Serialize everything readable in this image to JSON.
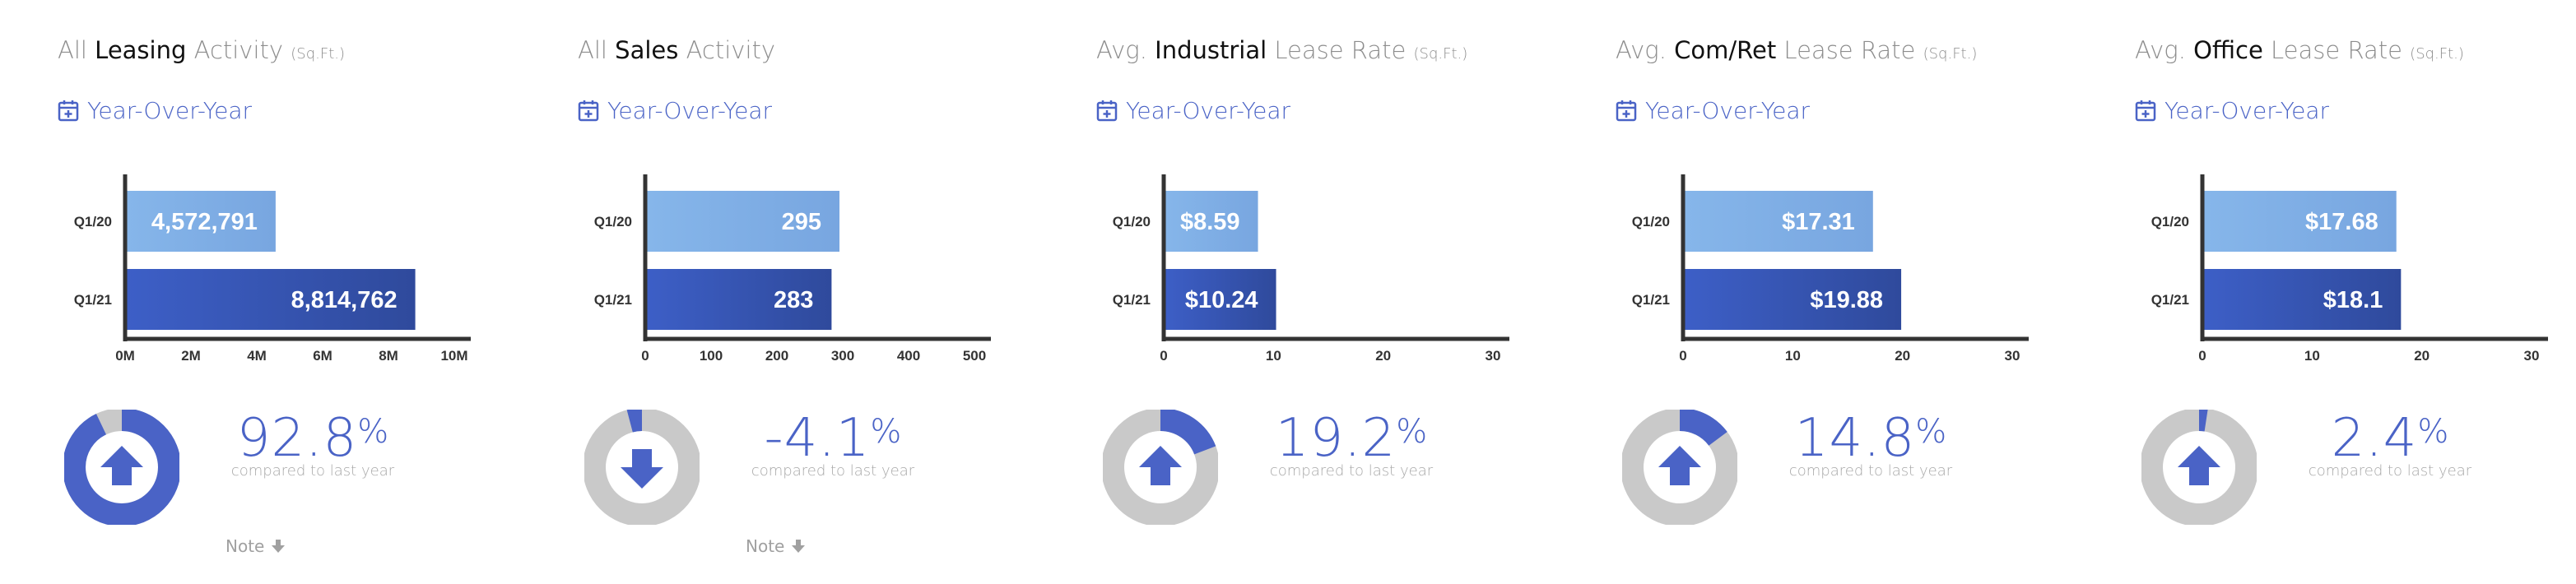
{
  "colors": {
    "accent": "#4a63c6",
    "bar_prev": "#7faee3",
    "bar_curr": "#3c5cbf",
    "donut_track": "#c9c9c9",
    "axis": "#333333"
  },
  "panels": [
    {
      "title_pre": "All ",
      "title_strong": "Leasing",
      "title_post": " Activity",
      "title_unit": "(Sq.Ft.)",
      "yoy_label": "Year-Over-Year",
      "pct_value": "92.8",
      "pct_unit": "%",
      "compare_text": "compared to last year",
      "note_label": "Note",
      "has_note": true,
      "direction": "up",
      "fraction": 0.928
    },
    {
      "title_pre": "All ",
      "title_strong": "Sales",
      "title_post": " Activity",
      "title_unit": "",
      "yoy_label": "Year-Over-Year",
      "pct_value": "-4.1",
      "pct_unit": "%",
      "compare_text": "compared to last year",
      "note_label": "Note",
      "has_note": true,
      "direction": "down",
      "fraction": 0.041
    },
    {
      "title_pre": "Avg. ",
      "title_strong": "Industrial",
      "title_post": " Lease Rate",
      "title_unit": "(Sq.Ft.)",
      "yoy_label": "Year-Over-Year",
      "pct_value": "19.2",
      "pct_unit": "%",
      "compare_text": "compared to last year",
      "note_label": "",
      "has_note": false,
      "direction": "up",
      "fraction": 0.192
    },
    {
      "title_pre": "Avg. ",
      "title_strong": "Com/Ret",
      "title_post": " Lease Rate",
      "title_unit": "(Sq.Ft.)",
      "yoy_label": "Year-Over-Year",
      "pct_value": "14.8",
      "pct_unit": "%",
      "compare_text": "compared to last year",
      "note_label": "",
      "has_note": false,
      "direction": "up",
      "fraction": 0.148
    },
    {
      "title_pre": "Avg. ",
      "title_strong": "Office",
      "title_post": " Lease Rate",
      "title_unit": "(Sq.Ft.)",
      "yoy_label": "Year-Over-Year",
      "pct_value": "2.4",
      "pct_unit": "%",
      "compare_text": "compared to last year",
      "note_label": "",
      "has_note": false,
      "direction": "up",
      "fraction": 0.024
    }
  ],
  "chart_data": [
    {
      "type": "bar",
      "orientation": "horizontal",
      "categories": [
        "Q1/20",
        "Q1/21"
      ],
      "values": [
        4572791,
        8814762
      ],
      "value_labels": [
        "4,572,791",
        "8,814,762"
      ],
      "xlim": [
        0,
        10000000
      ],
      "xticks": [
        0,
        2000000,
        4000000,
        6000000,
        8000000,
        10000000
      ],
      "tick_labels": [
        "0M",
        "2M",
        "4M",
        "6M",
        "8M",
        "10M"
      ],
      "grid": false,
      "title": "",
      "xlabel": "",
      "ylabel": ""
    },
    {
      "type": "bar",
      "orientation": "horizontal",
      "categories": [
        "Q1/20",
        "Q1/21"
      ],
      "values": [
        295,
        283
      ],
      "value_labels": [
        "295",
        "283"
      ],
      "xlim": [
        0,
        500
      ],
      "xticks": [
        0,
        100,
        200,
        300,
        400,
        500
      ],
      "tick_labels": [
        "0",
        "100",
        "200",
        "300",
        "400",
        "500"
      ],
      "grid": false,
      "title": "",
      "xlabel": "",
      "ylabel": ""
    },
    {
      "type": "bar",
      "orientation": "horizontal",
      "categories": [
        "Q1/20",
        "Q1/21"
      ],
      "values": [
        8.59,
        10.24
      ],
      "value_labels": [
        "$8.59",
        "$10.24"
      ],
      "xlim": [
        0,
        30
      ],
      "xticks": [
        0,
        10,
        20,
        30
      ],
      "tick_labels": [
        "0",
        "10",
        "20",
        "30"
      ],
      "grid": false,
      "title": "",
      "xlabel": "",
      "ylabel": ""
    },
    {
      "type": "bar",
      "orientation": "horizontal",
      "categories": [
        "Q1/20",
        "Q1/21"
      ],
      "values": [
        17.31,
        19.88
      ],
      "value_labels": [
        "$17.31",
        "$19.88"
      ],
      "xlim": [
        0,
        30
      ],
      "xticks": [
        0,
        10,
        20,
        30
      ],
      "tick_labels": [
        "0",
        "10",
        "20",
        "30"
      ],
      "grid": false,
      "title": "",
      "xlabel": "",
      "ylabel": ""
    },
    {
      "type": "bar",
      "orientation": "horizontal",
      "categories": [
        "Q1/20",
        "Q1/21"
      ],
      "values": [
        17.68,
        18.1
      ],
      "value_labels": [
        "$17.68",
        "$18.1"
      ],
      "xlim": [
        0,
        30
      ],
      "xticks": [
        0,
        10,
        20,
        30
      ],
      "tick_labels": [
        "0",
        "10",
        "20",
        "30"
      ],
      "grid": false,
      "title": "",
      "xlabel": "",
      "ylabel": ""
    }
  ]
}
